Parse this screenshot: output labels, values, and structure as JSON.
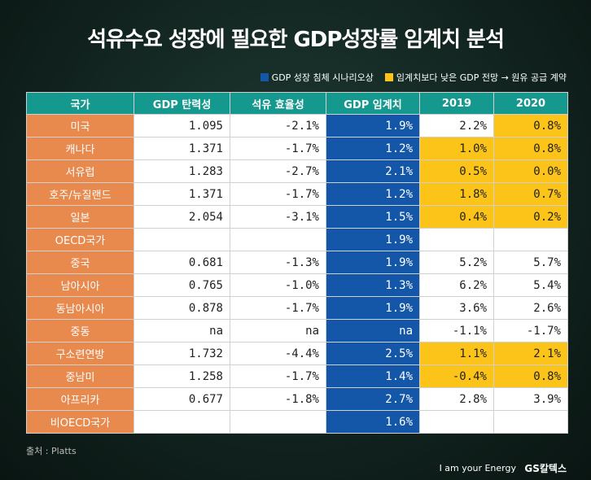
{
  "header": {
    "title": "석유수요 성장에 필요한 GDP성장률 임계치 분석"
  },
  "legend": [
    "GDP 성장 침체 시나리오상",
    "임계치보다 낮은 GDP 전망 → 원유 공급 계약"
  ],
  "table": {
    "columns": [
      "국가",
      "GDP 탄력성",
      "석유 효율성",
      "GDP 임계치",
      "2019",
      "2020"
    ],
    "rows": [
      [
        "미국",
        "1.095",
        "-2.1%",
        "1.9%",
        "2.2%",
        "0.8%"
      ],
      [
        "캐나다",
        "1.371",
        "-1.7%",
        "1.2%",
        "1.0%",
        "0.8%"
      ],
      [
        "서유럽",
        "1.283",
        "-2.7%",
        "2.1%",
        "0.5%",
        "0.0%"
      ],
      [
        "호주/뉴질랜드",
        "1.371",
        "-1.7%",
        "1.2%",
        "1.8%",
        "0.7%"
      ],
      [
        "일본",
        "2.054",
        "-3.1%",
        "1.5%",
        "0.4%",
        "0.2%"
      ],
      [
        "OECD국가",
        null,
        null,
        "1.9%",
        null,
        null
      ],
      [
        "중국",
        "0.681",
        "-1.3%",
        "1.9%",
        "5.2%",
        "5.7%"
      ],
      [
        "남아시아",
        "0.765",
        "-1.0%",
        "1.3%",
        "6.2%",
        "5.4%"
      ],
      [
        "동남아시아",
        "0.878",
        "-1.7%",
        "1.9%",
        "3.6%",
        "2.6%"
      ],
      [
        "중동",
        "na",
        "na",
        "na",
        "-1.1%",
        "-1.7%"
      ],
      [
        "구소련연방",
        "1.732",
        "-4.4%",
        "2.5%",
        "1.1%",
        "2.1%"
      ],
      [
        "중남미",
        "1.258",
        "-1.7%",
        "1.4%",
        "-0.4%",
        "0.8%"
      ],
      [
        "아프리카",
        "0.677",
        "-1.8%",
        "2.7%",
        "2.8%",
        "3.9%"
      ],
      [
        "비OECD국가",
        null,
        null,
        "1.6%",
        null,
        null
      ]
    ]
  },
  "footer": {
    "source": "출처 : Platts",
    "slogan": "I am your Energy",
    "brand": "GS칼텍스"
  }
}
